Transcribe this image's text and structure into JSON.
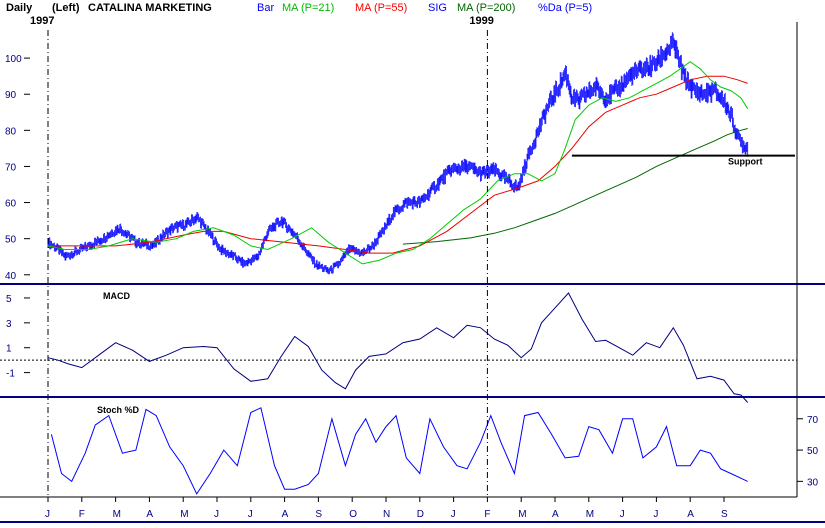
{
  "header": {
    "period": "Daily",
    "scale": "(Left)",
    "symbol": "CATALINA MARKETING",
    "legend": [
      {
        "key": "bar",
        "text": "Bar",
        "color": "#0000ff"
      },
      {
        "key": "ma21",
        "text": "MA (P=21)",
        "color": "#00bb00"
      },
      {
        "key": "ma55",
        "text": "MA (P=55)",
        "color": "#ff0000"
      },
      {
        "key": "sig",
        "text": "SIG",
        "color": "#0000ff"
      },
      {
        "key": "ma200",
        "text": "MA (P=200)",
        "color": "#006600"
      },
      {
        "key": "pctd",
        "text": "%Da (P=5)",
        "color": "#0000ff"
      }
    ],
    "year_labels": [
      {
        "text": "1997",
        "month_index": 0
      },
      {
        "text": "1999",
        "month_index": 13
      }
    ]
  },
  "colors": {
    "bars": "#0000ff",
    "ma21": "#00cc00",
    "ma55": "#ee0000",
    "ma200": "#006600",
    "support": "#000000",
    "macd": "#000080",
    "stoch": "#0000ff",
    "divider": "#000080",
    "axis_text": "#000080"
  },
  "months": [
    "J",
    "F",
    "M",
    "A",
    "M",
    "J",
    "J",
    "A",
    "S",
    "O",
    "N",
    "D",
    "J",
    "F",
    "M",
    "A",
    "M",
    "J",
    "J",
    "A",
    "S"
  ],
  "chart_data": [
    {
      "type": "line",
      "name": "price",
      "price_axis": {
        "ticks": [
          40,
          50,
          60,
          70,
          80,
          90,
          100
        ],
        "ylim": [
          38,
          110
        ]
      },
      "annotation": {
        "text": "Support",
        "level": 73
      },
      "anchors": {
        "x": [
          0,
          0.3,
          0.5,
          1.2,
          1.6,
          2.1,
          2.6,
          3.1,
          3.4,
          3.7,
          4.1,
          4.4,
          4.8,
          5.1,
          5.5,
          5.8,
          6.2,
          6.5,
          6.9,
          7.3,
          7.6,
          7.9,
          8.3,
          8.6,
          8.9,
          9.3,
          9.6,
          9.9,
          10.2,
          10.6,
          11.0,
          11.4,
          11.9,
          12.4,
          12.8,
          13.2,
          13.6,
          13.9,
          14.2,
          14.5,
          14.8,
          15.1,
          15.3,
          15.5,
          15.7,
          15.9,
          16.2,
          16.5,
          16.8,
          17.2,
          17.6,
          17.9,
          18.2,
          18.5,
          18.8,
          19.1,
          19.4,
          19.7,
          20.0,
          20.2,
          20.4,
          20.55,
          20.7
        ],
        "y": [
          49,
          47,
          45,
          48,
          50,
          53,
          49,
          48,
          51,
          53,
          54,
          56,
          51,
          47,
          45,
          43,
          45,
          52,
          55,
          51,
          47,
          43,
          41,
          43,
          47,
          46,
          48,
          52,
          57,
          60,
          60,
          64,
          69,
          70,
          68,
          69,
          66,
          64,
          73,
          80,
          87,
          92,
          96,
          89,
          88,
          90,
          92,
          89,
          91,
          95,
          97,
          98,
          101,
          104,
          95,
          91,
          90,
          91,
          88,
          84,
          78,
          76,
          75
        ]
      },
      "ma21_x": [
        0,
        0.5,
        1.2,
        1.8,
        2.5,
        3.2,
        3.8,
        4.3,
        4.9,
        5.5,
        6.0,
        6.5,
        7.2,
        7.8,
        8.3,
        8.8,
        9.3,
        9.8,
        10.3,
        10.8,
        11.3,
        11.8,
        12.3,
        12.8,
        13.3,
        13.8,
        14.2,
        14.6,
        15.0,
        15.3,
        15.6,
        16.0,
        16.4,
        16.8,
        17.2,
        17.6,
        18.0,
        18.4,
        18.7,
        19.0,
        19.3,
        19.6,
        19.9,
        20.2,
        20.5,
        20.7
      ],
      "ma21": [
        48,
        47,
        47,
        48,
        50,
        49,
        50,
        52,
        53,
        51,
        48,
        47,
        50,
        53,
        49,
        46,
        43,
        44,
        46,
        47,
        50,
        54,
        58,
        61,
        66,
        68,
        68,
        66,
        68,
        75,
        83,
        87,
        89,
        88,
        89,
        91,
        93,
        95,
        97,
        99,
        97,
        94,
        92,
        91,
        89,
        86
      ],
      "ma55_x": [
        0,
        1.0,
        2.0,
        3.0,
        4.0,
        4.6,
        5.2,
        6.0,
        7.0,
        8.0,
        8.8,
        9.5,
        10.2,
        11.0,
        11.8,
        12.5,
        13.2,
        13.9,
        14.5,
        15.0,
        15.5,
        16.0,
        16.5,
        17.0,
        17.5,
        18.0,
        18.5,
        19.0,
        19.5,
        20.0,
        20.4,
        20.7
      ],
      "ma55": [
        48,
        48,
        48,
        49,
        51,
        52,
        52,
        50,
        49,
        48,
        47,
        46,
        46,
        48,
        52,
        57,
        62,
        64,
        66,
        70,
        75,
        81,
        85,
        87,
        89,
        90,
        92,
        94,
        95,
        95,
        94,
        93
      ],
      "ma200_x": [
        10.5,
        11.5,
        12.5,
        13.2,
        13.8,
        14.4,
        15.0,
        15.6,
        16.2,
        16.8,
        17.4,
        18.0,
        18.6,
        19.2,
        19.7,
        20.1,
        20.5,
        20.7
      ],
      "ma200": [
        48.5,
        49.2,
        50.2,
        51.5,
        53,
        55,
        57,
        59.5,
        62,
        64.5,
        67,
        70,
        72.5,
        75,
        77,
        78.8,
        80,
        80.5
      ]
    },
    {
      "type": "line",
      "name": "macd",
      "title": "MACD",
      "axis": {
        "ticks": [
          5,
          3,
          1,
          -1
        ],
        "tick_labels": [
          "5",
          "3",
          "1",
          "-1"
        ],
        "ylim": [
          -2.8,
          5.8
        ]
      },
      "zero_line": 0,
      "x": [
        0,
        0.3,
        0.6,
        1.0,
        1.5,
        2.0,
        2.5,
        3.0,
        3.5,
        4.0,
        4.6,
        5.0,
        5.5,
        6.0,
        6.5,
        6.9,
        7.3,
        7.7,
        8.1,
        8.5,
        8.8,
        9.1,
        9.5,
        10.0,
        10.5,
        11.0,
        11.5,
        12.0,
        12.4,
        12.8,
        13.2,
        13.6,
        14.0,
        14.3,
        14.6,
        15.0,
        15.4,
        15.8,
        16.2,
        16.5,
        16.9,
        17.3,
        17.7,
        18.1,
        18.5,
        18.8,
        19.2,
        19.6,
        20.0,
        20.3,
        20.5,
        20.7
      ],
      "values": [
        0.2,
        0,
        -0.3,
        -0.6,
        0.4,
        1.4,
        0.8,
        -0.1,
        0.4,
        1.0,
        1.1,
        1.0,
        -0.7,
        -1.7,
        -1.5,
        0.3,
        1.9,
        1.1,
        -0.8,
        -1.8,
        -2.3,
        -0.8,
        0.3,
        0.5,
        1.4,
        1.7,
        2.6,
        1.8,
        2.8,
        2.6,
        1.7,
        1.2,
        0.2,
        0.9,
        3.0,
        4.2,
        5.4,
        3.3,
        1.5,
        1.6,
        1.0,
        0.4,
        1.4,
        1.0,
        2.6,
        1.2,
        -1.5,
        -1.3,
        -1.6,
        -2.7,
        -2.8,
        -3.4
      ]
    },
    {
      "type": "line",
      "name": "stoch",
      "title": "Stoch %D",
      "axis": {
        "ticks": [
          70,
          50,
          30
        ],
        "tick_labels": [
          "70",
          "50",
          "30"
        ],
        "ylim": [
          20,
          82
        ]
      },
      "x": [
        0.1,
        0.4,
        0.7,
        1.1,
        1.4,
        1.8,
        2.2,
        2.6,
        2.9,
        3.2,
        3.6,
        4.0,
        4.4,
        4.8,
        5.2,
        5.6,
        6.0,
        6.3,
        6.7,
        7.0,
        7.3,
        7.7,
        8.0,
        8.4,
        8.8,
        9.1,
        9.4,
        9.7,
        10.0,
        10.3,
        10.6,
        11.0,
        11.3,
        11.7,
        12.1,
        12.4,
        12.8,
        13.1,
        13.4,
        13.8,
        14.1,
        14.5,
        14.9,
        15.3,
        15.7,
        16.0,
        16.3,
        16.7,
        17.0,
        17.3,
        17.6,
        18.0,
        18.3,
        18.6,
        19.0,
        19.3,
        19.6,
        19.9,
        20.2,
        20.5,
        20.7
      ],
      "values": [
        60,
        35,
        30,
        48,
        66,
        72,
        48,
        50,
        76,
        72,
        52,
        40,
        22,
        35,
        50,
        40,
        74,
        77,
        40,
        25,
        25,
        28,
        35,
        70,
        40,
        60,
        70,
        55,
        65,
        72,
        45,
        35,
        70,
        52,
        40,
        38,
        55,
        72,
        55,
        35,
        72,
        74,
        60,
        45,
        46,
        65,
        63,
        48,
        70,
        70,
        45,
        52,
        65,
        40,
        40,
        50,
        48,
        38,
        35,
        32,
        30
      ]
    }
  ]
}
